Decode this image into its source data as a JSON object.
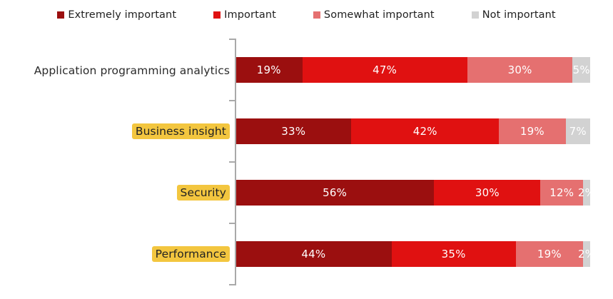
{
  "chart_data": {
    "type": "bar",
    "orientation": "horizontal",
    "stacked": true,
    "title": "",
    "xlabel": "",
    "ylabel": "",
    "xlim": [
      0,
      100
    ],
    "grid": false,
    "legend_position": "top",
    "value_label_format": "{value}%",
    "axis_color": "#a9a9a9",
    "highlight_color": "#f3c63f",
    "categories": [
      {
        "label": "Application programming analytics",
        "highlighted": false
      },
      {
        "label": "Business insight",
        "highlighted": true
      },
      {
        "label": "Security",
        "highlighted": true
      },
      {
        "label": "Performance",
        "highlighted": true
      }
    ],
    "series": [
      {
        "name": "Extremely important",
        "color": "#9b0f0f",
        "values": [
          19,
          33,
          56,
          44
        ],
        "labels": [
          "19%",
          "33%",
          "56%",
          "44%"
        ]
      },
      {
        "name": "Important",
        "color": "#e01111",
        "values": [
          47,
          42,
          30,
          35
        ],
        "labels": [
          "47%",
          "42%",
          "30%",
          "35%"
        ]
      },
      {
        "name": "Somewhat important",
        "color": "#e57070",
        "values": [
          30,
          19,
          12,
          19
        ],
        "labels": [
          "30%",
          "19%",
          "12%",
          "19%"
        ]
      },
      {
        "name": "Not important",
        "color": "#d2d2d2",
        "values": [
          5,
          7,
          2,
          2
        ],
        "labels": [
          "5%",
          "7%",
          "2%",
          "2%"
        ]
      }
    ]
  }
}
